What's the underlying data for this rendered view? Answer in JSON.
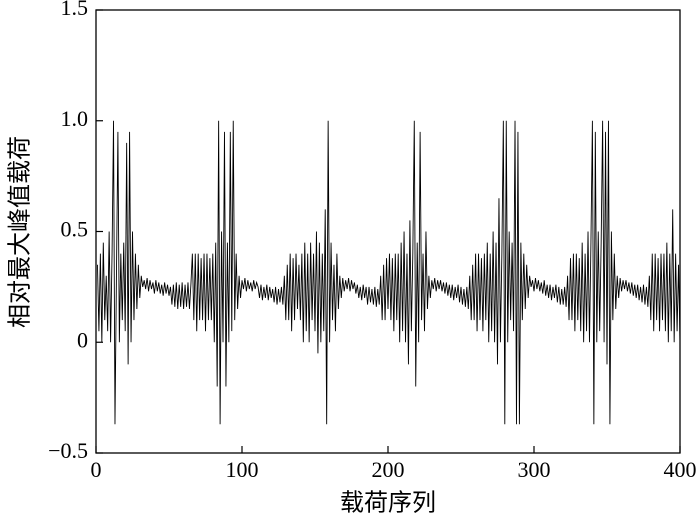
{
  "chart_data": {
    "type": "line",
    "xlabel": "载荷序列",
    "ylabel": "相对最大峰值载荷",
    "xlim": [
      0,
      400
    ],
    "xticks": [
      0,
      100,
      200,
      300,
      400
    ],
    "ylim": [
      -0.5,
      1.5
    ],
    "yticks": [
      {
        "value": -0.5,
        "label": "−0.5"
      },
      0,
      0.5,
      {
        "value": 1.0,
        "label": "1.0"
      },
      1.5
    ],
    "grid": false,
    "series": [
      {
        "color": "#000000",
        "x": [
          1,
          2,
          3,
          4,
          5,
          6,
          7,
          8,
          9,
          10,
          11,
          12,
          13,
          14,
          15,
          16,
          17,
          18,
          19,
          20,
          21,
          22,
          23,
          24,
          25,
          26,
          27,
          28,
          29,
          30,
          31,
          32,
          33,
          34,
          35,
          36,
          37,
          38,
          39,
          40,
          41,
          42,
          43,
          44,
          45,
          46,
          47,
          48,
          49,
          50,
          51,
          52,
          53,
          54,
          55,
          56,
          57,
          58,
          59,
          60,
          61,
          62,
          63,
          64,
          65,
          66,
          67,
          68,
          69,
          70,
          71,
          72,
          73,
          74,
          75,
          76,
          77,
          78,
          79,
          80,
          81,
          82,
          83,
          84,
          85,
          86,
          87,
          88,
          89,
          90,
          91,
          92,
          93,
          94,
          95,
          96,
          97,
          98,
          99,
          100,
          101,
          102,
          103,
          104,
          105,
          106,
          107,
          108,
          109,
          110,
          111,
          112,
          113,
          114,
          115,
          116,
          117,
          118,
          119,
          120,
          121,
          122,
          123,
          124,
          125,
          126,
          127,
          128,
          129,
          130,
          131,
          132,
          133,
          134,
          135,
          136,
          137,
          138,
          139,
          140,
          141,
          142,
          143,
          144,
          145,
          146,
          147,
          148,
          149,
          150,
          151,
          152,
          153,
          154,
          155,
          156,
          157,
          158,
          159,
          160,
          161,
          162,
          163,
          164,
          165,
          166,
          167,
          168,
          169,
          170,
          171,
          172,
          173,
          174,
          175,
          176,
          177,
          178,
          179,
          180,
          181,
          182,
          183,
          184,
          185,
          186,
          187,
          188,
          189,
          190,
          191,
          192,
          193,
          194,
          195,
          196,
          197,
          198,
          199,
          200,
          201,
          202,
          203,
          204,
          205,
          206,
          207,
          208,
          209,
          210,
          211,
          212,
          213,
          214,
          215,
          216,
          217,
          218,
          219,
          220,
          221,
          222,
          223,
          224,
          225,
          226,
          227,
          228,
          229,
          230,
          231,
          232,
          233,
          234,
          235,
          236,
          237,
          238,
          239,
          240,
          241,
          242,
          243,
          244,
          245,
          246,
          247,
          248,
          249,
          250,
          251,
          252,
          253,
          254,
          255,
          256,
          257,
          258,
          259,
          260,
          261,
          262,
          263,
          264,
          265,
          266,
          267,
          268,
          269,
          270,
          271,
          272,
          273,
          274,
          275,
          276,
          277,
          278,
          279,
          280,
          281,
          282,
          283,
          284,
          285,
          286,
          287,
          288,
          289,
          290,
          291,
          292,
          293,
          294,
          295,
          296,
          297,
          298,
          299,
          300,
          301,
          302,
          303,
          304,
          305,
          306,
          307,
          308,
          309,
          310,
          311,
          312,
          313,
          314,
          315,
          316,
          317,
          318,
          319,
          320,
          321,
          322,
          323,
          324,
          325,
          326,
          327,
          328,
          329,
          330,
          331,
          332,
          333,
          334,
          335,
          336,
          337,
          338,
          339,
          340,
          341,
          342,
          343,
          344,
          345,
          346,
          347,
          348,
          349,
          350,
          351,
          352,
          353,
          354,
          355,
          356,
          357,
          358,
          359,
          360,
          361,
          362,
          363,
          364,
          365,
          366,
          367,
          368,
          369,
          370,
          371,
          372,
          373,
          374,
          375,
          376,
          377,
          378,
          379,
          380,
          381,
          382,
          383,
          384,
          385,
          386,
          387,
          388,
          389,
          390,
          391,
          392,
          393,
          394,
          395,
          396,
          397,
          398,
          399,
          400
        ],
        "values": [
          0.35,
          0.05,
          0.4,
          0.0,
          0.45,
          0.1,
          0.3,
          0.05,
          0.5,
          0.0,
          0.4,
          1.0,
          -0.37,
          0.3,
          0.95,
          0.0,
          0.4,
          0.1,
          0.45,
          0.05,
          0.9,
          -0.1,
          0.95,
          0.0,
          0.5,
          0.1,
          0.4,
          0.15,
          0.35,
          0.2,
          0.3,
          0.25,
          0.28,
          0.24,
          0.29,
          0.23,
          0.28,
          0.24,
          0.27,
          0.22,
          0.28,
          0.23,
          0.27,
          0.22,
          0.26,
          0.21,
          0.27,
          0.22,
          0.26,
          0.21,
          0.25,
          0.17,
          0.26,
          0.16,
          0.27,
          0.15,
          0.26,
          0.16,
          0.27,
          0.15,
          0.26,
          0.16,
          0.27,
          0.15,
          0.26,
          0.4,
          0.1,
          0.4,
          0.05,
          0.4,
          0.1,
          0.38,
          0.1,
          0.4,
          0.05,
          0.4,
          0.1,
          0.38,
          0.1,
          0.4,
          0.0,
          0.45,
          -0.2,
          1.0,
          -0.37,
          0.5,
          0.0,
          0.95,
          -0.2,
          0.45,
          0.0,
          0.95,
          0.05,
          1.0,
          0.1,
          0.4,
          0.15,
          0.3,
          0.2,
          0.28,
          0.24,
          0.29,
          0.23,
          0.28,
          0.24,
          0.27,
          0.23,
          0.28,
          0.24,
          0.27,
          0.25,
          0.2,
          0.26,
          0.19,
          0.25,
          0.2,
          0.26,
          0.19,
          0.25,
          0.2,
          0.24,
          0.18,
          0.25,
          0.17,
          0.24,
          0.18,
          0.25,
          0.17,
          0.3,
          0.1,
          0.35,
          0.1,
          0.4,
          0.05,
          0.38,
          0.1,
          0.4,
          0.15,
          0.35,
          0.1,
          0.4,
          0.0,
          0.45,
          0.05,
          0.4,
          0.0,
          0.45,
          0.1,
          0.4,
          0.05,
          0.5,
          -0.05,
          0.45,
          0.0,
          0.4,
          0.05,
          0.6,
          -0.37,
          1.0,
          0.0,
          0.45,
          0.1,
          0.35,
          0.05,
          0.4,
          0.15,
          0.3,
          0.2,
          0.29,
          0.23,
          0.28,
          0.24,
          0.29,
          0.23,
          0.28,
          0.24,
          0.27,
          0.22,
          0.26,
          0.2,
          0.25,
          0.19,
          0.26,
          0.2,
          0.25,
          0.17,
          0.25,
          0.18,
          0.24,
          0.17,
          0.25,
          0.16,
          0.24,
          0.17,
          0.3,
          0.1,
          0.35,
          0.1,
          0.38,
          0.15,
          0.4,
          0.1,
          0.38,
          0.05,
          0.4,
          0.1,
          0.4,
          0.0,
          0.45,
          0.05,
          0.5,
          0.0,
          0.4,
          -0.1,
          0.55,
          0.05,
          0.4,
          1.0,
          -0.2,
          0.45,
          0.0,
          0.95,
          0.1,
          0.4,
          0.05,
          0.5,
          0.15,
          0.3,
          0.2,
          0.28,
          0.24,
          0.29,
          0.23,
          0.28,
          0.24,
          0.28,
          0.23,
          0.27,
          0.22,
          0.27,
          0.21,
          0.26,
          0.2,
          0.26,
          0.19,
          0.25,
          0.2,
          0.26,
          0.18,
          0.25,
          0.17,
          0.24,
          0.16,
          0.25,
          0.15,
          0.3,
          0.1,
          0.35,
          0.1,
          0.4,
          0.05,
          0.4,
          0.1,
          0.38,
          0.05,
          0.4,
          0.1,
          0.45,
          0.0,
          0.4,
          0.05,
          0.5,
          0.0,
          0.45,
          -0.1,
          0.65,
          0.0,
          0.4,
          1.0,
          -0.37,
          1.0,
          0.0,
          0.5,
          0.1,
          0.45,
          0.05,
          1.0,
          -0.37,
          0.95,
          -0.37,
          0.45,
          0.1,
          0.4,
          0.15,
          0.35,
          0.2,
          0.3,
          0.25,
          0.28,
          0.23,
          0.29,
          0.24,
          0.28,
          0.23,
          0.27,
          0.22,
          0.28,
          0.21,
          0.26,
          0.2,
          0.26,
          0.19,
          0.25,
          0.2,
          0.26,
          0.18,
          0.25,
          0.17,
          0.24,
          0.17,
          0.25,
          0.16,
          0.3,
          0.1,
          0.38,
          0.1,
          0.4,
          0.05,
          0.4,
          0.1,
          0.38,
          0.05,
          0.45,
          0.0,
          0.4,
          0.05,
          0.5,
          0.0,
          0.45,
          1.0,
          -0.37,
          0.95,
          0.0,
          0.5,
          0.05,
          0.45,
          1.0,
          0.0,
          0.95,
          -0.1,
          1.0,
          -0.37,
          0.5,
          0.1,
          0.4,
          0.15,
          0.3,
          0.2,
          0.29,
          0.23,
          0.28,
          0.24,
          0.28,
          0.23,
          0.27,
          0.22,
          0.27,
          0.21,
          0.26,
          0.2,
          0.26,
          0.19,
          0.25,
          0.18,
          0.26,
          0.17,
          0.25,
          0.16,
          0.3,
          0.1,
          0.4,
          0.05,
          0.4,
          0.1,
          0.38,
          0.05,
          0.4,
          0.1,
          0.4,
          0.05,
          0.45,
          0.0,
          0.4,
          0.05,
          0.6,
          0.0,
          0.4,
          0.05,
          0.35,
          0.0
        ]
      }
    ]
  }
}
